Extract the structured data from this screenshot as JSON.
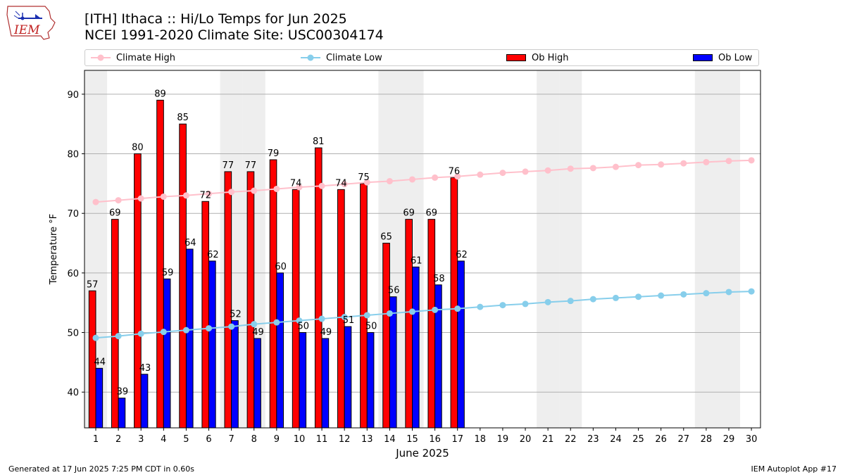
{
  "header": {
    "title_line1": "[ITH] Ithaca :: Hi/Lo Temps for Jun 2025",
    "title_line2": "NCEI 1991-2020 Climate Site: USC00304174",
    "logo_text": "IEM"
  },
  "footer": {
    "left": "Generated at 17 Jun 2025 7:25 PM CDT in 0.60s",
    "right": "IEM Autoplot App #17"
  },
  "colors": {
    "ob_high": "#ff0000",
    "ob_low": "#0000ff",
    "climate_high": "#ffc0cb",
    "climate_low": "#87ceeb",
    "weekend_shade": "#eeeeee",
    "grid": "#b0b0b0"
  },
  "chart_data": {
    "type": "bar",
    "xlabel": "June 2025",
    "ylabel": "Temperature °F",
    "ylim": [
      34,
      94
    ],
    "yticks": [
      40,
      50,
      60,
      70,
      80,
      90
    ],
    "grid": "horizontal",
    "legend_placement": "top",
    "days": [
      1,
      2,
      3,
      4,
      5,
      6,
      7,
      8,
      9,
      10,
      11,
      12,
      13,
      14,
      15,
      16,
      17,
      18,
      19,
      20,
      21,
      22,
      23,
      24,
      25,
      26,
      27,
      28,
      29,
      30
    ],
    "weekend_days": [
      1,
      7,
      8,
      14,
      15,
      21,
      22,
      28,
      29
    ],
    "series": [
      {
        "name": "Climate High",
        "kind": "line",
        "values": [
          71.9,
          72.2,
          72.5,
          72.8,
          73.0,
          73.3,
          73.6,
          73.8,
          74.1,
          74.4,
          74.6,
          74.9,
          75.2,
          75.4,
          75.7,
          76.0,
          76.2,
          76.5,
          76.8,
          77.0,
          77.2,
          77.5,
          77.6,
          77.8,
          78.1,
          78.2,
          78.4,
          78.6,
          78.8,
          78.9
        ]
      },
      {
        "name": "Climate Low",
        "kind": "line",
        "values": [
          49.1,
          49.4,
          49.8,
          50.1,
          50.4,
          50.7,
          51.0,
          51.4,
          51.7,
          52.0,
          52.3,
          52.6,
          52.9,
          53.2,
          53.5,
          53.8,
          54.0,
          54.3,
          54.6,
          54.8,
          55.1,
          55.3,
          55.6,
          55.8,
          56.0,
          56.2,
          56.4,
          56.6,
          56.8,
          56.9
        ]
      },
      {
        "name": "Ob High",
        "kind": "bar",
        "values": [
          57,
          69,
          80,
          89,
          85,
          72,
          77,
          77,
          79,
          74,
          81,
          74,
          75,
          65,
          69,
          69,
          76
        ]
      },
      {
        "name": "Ob Low",
        "kind": "bar",
        "values": [
          44,
          39,
          43,
          59,
          64,
          62,
          52,
          49,
          60,
          50,
          49,
          51,
          50,
          56,
          61,
          58,
          62
        ]
      }
    ]
  }
}
